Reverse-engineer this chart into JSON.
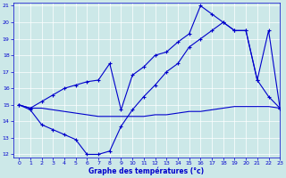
{
  "title": "Graphe des températures (°c)",
  "bg_color": "#cce8e8",
  "line_color": "#0000cc",
  "xlim": [
    -0.5,
    23
  ],
  "ylim": [
    11.8,
    21.2
  ],
  "yticks": [
    12,
    13,
    14,
    15,
    16,
    17,
    18,
    19,
    20,
    21
  ],
  "xticks": [
    0,
    1,
    2,
    3,
    4,
    5,
    6,
    7,
    8,
    9,
    10,
    11,
    12,
    13,
    14,
    15,
    16,
    17,
    18,
    19,
    20,
    21,
    22,
    23
  ],
  "series1_x": [
    0,
    1,
    2,
    3,
    4,
    5,
    6,
    7,
    8,
    9,
    10,
    11,
    12,
    13,
    14,
    15,
    16,
    17,
    18,
    19,
    20,
    21,
    22,
    23
  ],
  "series1_y": [
    15.0,
    14.8,
    15.2,
    15.6,
    16.0,
    16.2,
    16.4,
    16.5,
    17.5,
    14.7,
    16.8,
    17.3,
    18.0,
    18.2,
    18.8,
    19.3,
    21.0,
    20.5,
    20.0,
    19.5,
    19.5,
    16.5,
    19.5,
    14.8
  ],
  "series2_x": [
    0,
    1,
    2,
    3,
    4,
    5,
    6,
    7,
    8,
    9,
    10,
    11,
    12,
    13,
    14,
    15,
    16,
    17,
    18,
    19,
    20,
    21,
    22,
    23
  ],
  "series2_y": [
    15.0,
    14.8,
    14.8,
    14.7,
    14.6,
    14.5,
    14.4,
    14.3,
    14.3,
    14.3,
    14.3,
    14.3,
    14.4,
    14.4,
    14.5,
    14.6,
    14.6,
    14.7,
    14.8,
    14.9,
    14.9,
    14.9,
    14.9,
    14.8
  ],
  "series3_x": [
    0,
    1,
    2,
    3,
    4,
    5,
    6,
    7,
    8,
    9,
    10,
    11,
    12,
    13,
    14,
    15,
    16,
    17,
    18,
    19,
    20,
    21,
    22,
    23
  ],
  "series3_y": [
    15.0,
    14.7,
    13.8,
    13.5,
    13.2,
    12.9,
    12.0,
    12.0,
    12.2,
    13.7,
    14.7,
    15.5,
    16.2,
    17.0,
    17.5,
    18.5,
    19.0,
    19.5,
    20.0,
    19.5,
    19.5,
    16.5,
    15.5,
    14.8
  ]
}
